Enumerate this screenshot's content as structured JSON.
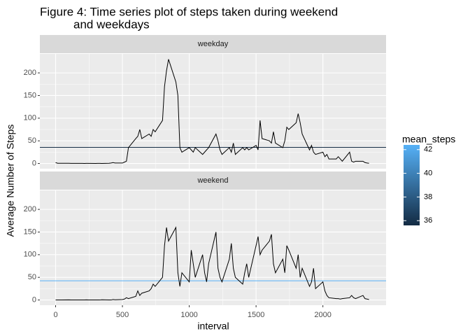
{
  "chart_data": {
    "type": "line",
    "title": [
      "Figure 4: Time series plot of steps taken during weekend",
      "and weekdays"
    ],
    "x_label": "interval",
    "y_label": "Average Number of Steps",
    "xlim": [
      -117.75,
      2472.75
    ],
    "xticks": [
      0,
      500,
      1000,
      1500,
      2000
    ],
    "ylim": [
      -11.5,
      241.9
    ],
    "yticks": [
      0,
      50,
      100,
      150,
      200
    ],
    "grid": true,
    "line_color": "#000000",
    "x": [
      0,
      15,
      30,
      45,
      100,
      115,
      130,
      145,
      200,
      215,
      230,
      245,
      300,
      315,
      330,
      345,
      400,
      415,
      430,
      445,
      500,
      515,
      530,
      545,
      600,
      615,
      630,
      645,
      700,
      715,
      730,
      745,
      800,
      815,
      830,
      845,
      900,
      915,
      930,
      945,
      1000,
      1015,
      1030,
      1045,
      1100,
      1115,
      1130,
      1145,
      1200,
      1215,
      1230,
      1245,
      1300,
      1315,
      1330,
      1345,
      1400,
      1415,
      1430,
      1445,
      1500,
      1515,
      1530,
      1545,
      1600,
      1615,
      1630,
      1645,
      1700,
      1715,
      1730,
      1745,
      1800,
      1815,
      1830,
      1845,
      1900,
      1915,
      1930,
      1945,
      2000,
      2015,
      2030,
      2045,
      2100,
      2115,
      2130,
      2145,
      2200,
      2215,
      2230,
      2245,
      2300,
      2315,
      2330,
      2345
    ],
    "panels": [
      {
        "name": "weekday",
        "mean": 35.6,
        "values": [
          2,
          0.5,
          0.5,
          0.5,
          0.4,
          0.3,
          0.2,
          0.3,
          0.2,
          0.1,
          0.3,
          0.2,
          0.1,
          0.2,
          0.3,
          0.1,
          0.5,
          1,
          2,
          1,
          1,
          3,
          5,
          35,
          55,
          60,
          75,
          55,
          65,
          60,
          75,
          70,
          95,
          170,
          205,
          230,
          180,
          150,
          35,
          25,
          35,
          30,
          25,
          35,
          20,
          25,
          30,
          35,
          65,
          50,
          30,
          20,
          35,
          25,
          45,
          20,
          35,
          30,
          35,
          30,
          40,
          30,
          95,
          55,
          50,
          45,
          70,
          45,
          35,
          50,
          80,
          75,
          90,
          110,
          90,
          65,
          30,
          40,
          25,
          20,
          25,
          15,
          20,
          10,
          10,
          15,
          10,
          5,
          25,
          5,
          3,
          5,
          5,
          2,
          1,
          0.5
        ]
      },
      {
        "name": "weekend",
        "mean": 42.4,
        "values": [
          0,
          0,
          0,
          0,
          0.2,
          0,
          0,
          0,
          0,
          0,
          0.3,
          0,
          0,
          0,
          0,
          0.5,
          0,
          0,
          1,
          0.5,
          1,
          2,
          5,
          3,
          8,
          20,
          10,
          15,
          20,
          25,
          35,
          30,
          50,
          120,
          160,
          130,
          160,
          60,
          30,
          60,
          40,
          110,
          80,
          50,
          100,
          60,
          40,
          80,
          150,
          70,
          50,
          40,
          90,
          125,
          70,
          50,
          35,
          60,
          80,
          50,
          120,
          140,
          100,
          110,
          130,
          145,
          80,
          60,
          90,
          60,
          120,
          110,
          70,
          100,
          50,
          70,
          30,
          40,
          70,
          25,
          40,
          20,
          10,
          5,
          3,
          3,
          2,
          3,
          5,
          10,
          5,
          3,
          10,
          3,
          2,
          1
        ]
      }
    ],
    "legend": {
      "title": "mean_steps",
      "lim": [
        35.6,
        42.4
      ],
      "ticks": [
        36,
        38,
        40,
        42
      ],
      "colors": [
        "#132B43",
        "#56B1F7"
      ]
    }
  }
}
